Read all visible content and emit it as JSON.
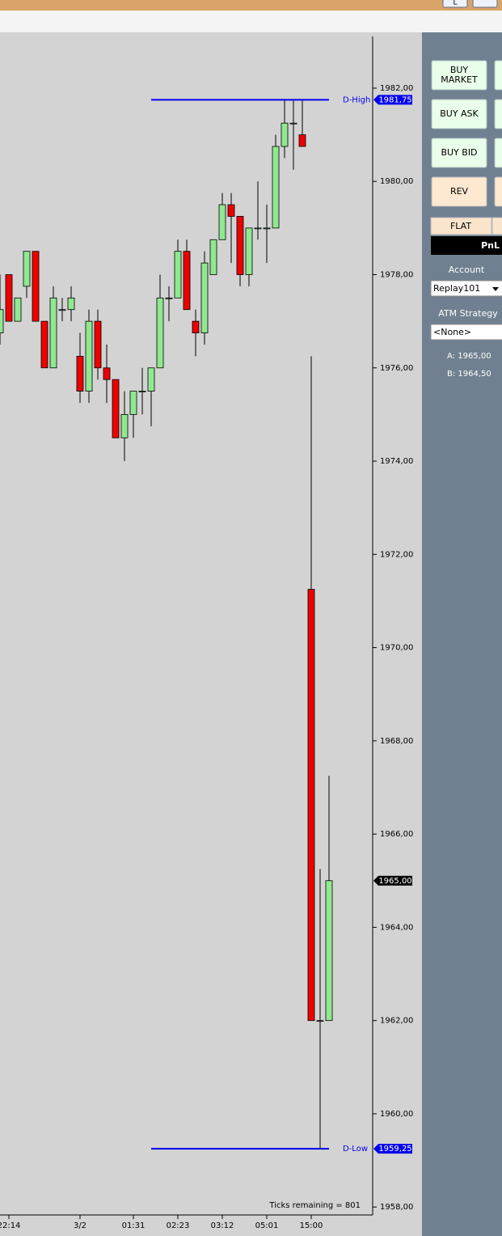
{
  "chart_data": {
    "type": "candlestick",
    "categories": [
      null,
      "22:14",
      null,
      null,
      null,
      null,
      null,
      null,
      null,
      "3/2",
      null,
      null,
      null,
      null,
      null,
      "01:31",
      null,
      null,
      null,
      null,
      "02:23",
      null,
      null,
      null,
      null,
      "03:12",
      null,
      null,
      null,
      null,
      "05:01",
      null,
      null,
      null,
      null,
      "15:00",
      null,
      null
    ],
    "open": [
      1976.75,
      1978,
      1977,
      1977.75,
      1978.5,
      1977,
      1976,
      1977.25,
      1977.25,
      1976.25,
      1975.5,
      1977,
      1976,
      1975.75,
      1974.5,
      1975,
      1975.5,
      1975.5,
      1976,
      1977.5,
      1977.5,
      1978.5,
      1977,
      1976.75,
      1978,
      1978.75,
      1979.5,
      1979.25,
      1978,
      1979,
      1979,
      1979,
      1980.75,
      1981.25,
      1981,
      1971.25,
      1962,
      1962
    ],
    "high": [
      1978,
      1978,
      1977.5,
      1978.5,
      1978.5,
      1977,
      1977.75,
      1977.5,
      1977.75,
      1976.75,
      1977.25,
      1977.25,
      1976.5,
      1975.75,
      1975.5,
      1975.5,
      1976,
      1976,
      1978,
      1977.75,
      1978.75,
      1978.75,
      1977.25,
      1978.5,
      1978.75,
      1979.75,
      1979.75,
      1979.25,
      1979,
      1980,
      1979.5,
      1981,
      1981.75,
      1981.75,
      1981.75,
      1976.25,
      1965.25,
      1967.25
    ],
    "low": [
      1976.5,
      1977,
      1977,
      1977.5,
      1977,
      1976,
      1976,
      1977,
      1977,
      1975.25,
      1975.25,
      1975.75,
      1975.25,
      1974.5,
      1974,
      1974.5,
      1975,
      1974.75,
      1976,
      1977,
      1977.5,
      1977.25,
      1976.25,
      1976.5,
      1978,
      1978.75,
      1978.25,
      1977.75,
      1977.75,
      1978.75,
      1978.25,
      1979,
      1980.5,
      1980.25,
      1980.75,
      1962,
      1959.25,
      1962
    ],
    "close": [
      1977.25,
      1977,
      1977.5,
      1978.5,
      1977,
      1976,
      1977.5,
      1977.25,
      1977.5,
      1975.5,
      1977,
      1976,
      1975.75,
      1974.5,
      1975,
      1975.5,
      1975.5,
      1976,
      1977.5,
      1977.5,
      1978.5,
      1977.25,
      1976.75,
      1978.25,
      1978.75,
      1979.5,
      1979.25,
      1978,
      1979,
      1979,
      1979,
      1980.75,
      1981.25,
      1981.25,
      1980.75,
      1962,
      1962,
      1965
    ],
    "up_color": "#90e890",
    "down_color": "#ee0000",
    "ylim": [
      1957.83,
      1983.11
    ],
    "yticks": [
      {
        "value": 1958,
        "label": "1958,00"
      },
      {
        "value": 1960,
        "label": "1960,00"
      },
      {
        "value": 1962,
        "label": "1962,00"
      },
      {
        "value": 1964,
        "label": "1964,00"
      },
      {
        "value": 1966,
        "label": "1966,00"
      },
      {
        "value": 1968,
        "label": "1968,00"
      },
      {
        "value": 1970,
        "label": "1970,00"
      },
      {
        "value": 1972,
        "label": "1972,00"
      },
      {
        "value": 1974,
        "label": "1974,00"
      },
      {
        "value": 1976,
        "label": "1976,00"
      },
      {
        "value": 1978,
        "label": "1978,00"
      },
      {
        "value": 1980,
        "label": "1980,00"
      },
      {
        "value": 1982,
        "label": "1982,00"
      }
    ],
    "lines": [
      {
        "name": "D-High",
        "value": 1981.75,
        "value_label": "1981,75",
        "color": "#0000ee"
      },
      {
        "name": "D-Low",
        "value": 1959.25,
        "value_label": "1959,25",
        "color": "#0000ee"
      }
    ],
    "last_price": {
      "value": 1965,
      "value_label": "1965,00"
    },
    "footer": "Ticks remaining = 801"
  },
  "panel": {
    "buttons": [
      "BUY MARKET",
      "BUY ASK",
      "BUY BID",
      "REV"
    ],
    "flat": "FLAT",
    "pnl": "PnL",
    "account_label": "Account",
    "account": "Replay101",
    "atm_label": "ATM Strategy",
    "atm": "<None>",
    "ask": "A: 1965,00",
    "bid": "B: 1964,50"
  },
  "titlebar": {
    "button": "L"
  }
}
